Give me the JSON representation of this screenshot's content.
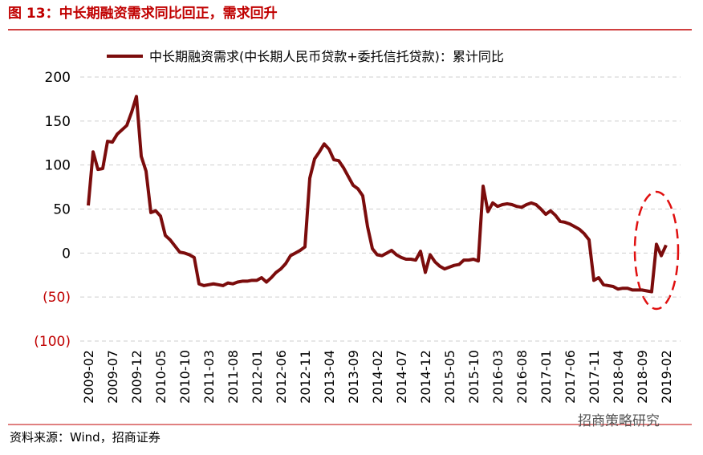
{
  "chart_data": {
    "type": "line",
    "title": "图 13：中长期融资需求同比回正，需求回升",
    "source": "资料来源：Wind，招商证券",
    "watermark": "招商策略研究",
    "categories": [
      "2009-02",
      null,
      null,
      null,
      null,
      "2009-07",
      null,
      null,
      null,
      null,
      "2009-12",
      null,
      null,
      null,
      null,
      "2010-05",
      null,
      null,
      null,
      null,
      "2010-10",
      null,
      null,
      null,
      null,
      "2011-03",
      null,
      null,
      null,
      null,
      "2011-08",
      null,
      null,
      null,
      null,
      "2012-01",
      null,
      null,
      null,
      null,
      "2012-06",
      null,
      null,
      null,
      null,
      "2012-11",
      null,
      null,
      null,
      null,
      "2013-04",
      null,
      null,
      null,
      null,
      "2013-09",
      null,
      null,
      null,
      null,
      "2014-02",
      null,
      null,
      null,
      null,
      "2014-07",
      null,
      null,
      null,
      null,
      "2014-12",
      null,
      null,
      null,
      null,
      "2015-05",
      null,
      null,
      null,
      null,
      "2015-10",
      null,
      null,
      null,
      null,
      "2016-03",
      null,
      null,
      null,
      null,
      "2016-08",
      null,
      null,
      null,
      null,
      "2017-01",
      null,
      null,
      null,
      null,
      "2017-06",
      null,
      null,
      null,
      null,
      "2017-11",
      null,
      null,
      null,
      null,
      "2018-04",
      null,
      null,
      null,
      null,
      "2018-09",
      null,
      null,
      null,
      null,
      "2019-02"
    ],
    "series": [
      {
        "name": "中长期融资需求(中长期人民币贷款+委托信托贷款)：累计同比",
        "color": "#7b0c0c",
        "values": [
          54,
          115,
          95,
          96,
          127,
          126,
          135,
          140,
          145,
          160,
          178,
          110,
          93,
          46,
          48,
          42,
          20,
          15,
          8,
          1,
          0,
          -2,
          -5,
          -35,
          -37,
          -36,
          -35,
          -36,
          -37,
          -34,
          -35,
          -33,
          -32,
          -32,
          -31,
          -31,
          -28,
          -33,
          -28,
          -22,
          -18,
          -12,
          -3,
          0,
          3,
          7,
          85,
          107,
          115,
          124,
          118,
          106,
          105,
          97,
          87,
          77,
          73,
          65,
          30,
          5,
          -2,
          -3,
          0,
          3,
          -2,
          -5,
          -7,
          -7,
          -8,
          2,
          -22,
          -2,
          -10,
          -15,
          -18,
          -16,
          -14,
          -13,
          -8,
          -8,
          -7,
          -9,
          76,
          47,
          57,
          53,
          55,
          56,
          55,
          53,
          52,
          55,
          57,
          55,
          50,
          44,
          48,
          43,
          36,
          35,
          33,
          30,
          27,
          22,
          15,
          -31,
          -28,
          -36,
          -37,
          -38,
          -41,
          -40,
          -40,
          -42,
          -42,
          -42,
          -43,
          -44,
          10,
          -3,
          9
        ]
      }
    ],
    "ylim": [
      -100,
      200
    ],
    "yticks": [
      {
        "value": -100,
        "label": "(100)"
      },
      {
        "value": -50,
        "label": "(50)"
      },
      0,
      50,
      100,
      150,
      200
    ],
    "grid": true,
    "negative_tick_color": "#c00000",
    "title_color": "#c00000"
  }
}
